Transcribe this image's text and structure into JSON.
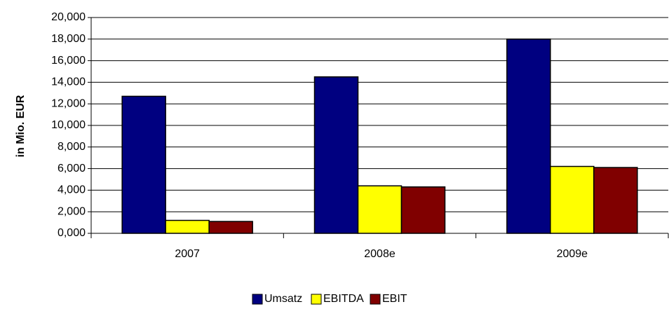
{
  "chart_data": {
    "type": "bar",
    "y_label": "in Mio. EUR",
    "categories": [
      "2007",
      "2008e",
      "2009e"
    ],
    "series": [
      {
        "name": "Umsatz",
        "color": "#000080",
        "values": [
          12700,
          14500,
          18000
        ]
      },
      {
        "name": "EBITDA",
        "color": "#ffff00",
        "values": [
          1200,
          4400,
          6200
        ]
      },
      {
        "name": "EBIT",
        "color": "#800000",
        "values": [
          1100,
          4300,
          6100
        ]
      }
    ],
    "ylim": [
      0,
      20000
    ],
    "yticks": [
      {
        "value": 0,
        "label": "0,000"
      },
      {
        "value": 2000,
        "label": "2,000"
      },
      {
        "value": 4000,
        "label": "4,000"
      },
      {
        "value": 6000,
        "label": "6,000"
      },
      {
        "value": 8000,
        "label": "8,000"
      },
      {
        "value": 10000,
        "label": "10,000"
      },
      {
        "value": 12000,
        "label": "12,000"
      },
      {
        "value": 14000,
        "label": "14,000"
      },
      {
        "value": 16000,
        "label": "16,000"
      },
      {
        "value": 18000,
        "label": "18,000"
      },
      {
        "value": 20000,
        "label": "20,000"
      }
    ],
    "grid": true,
    "legend": "bottom"
  }
}
